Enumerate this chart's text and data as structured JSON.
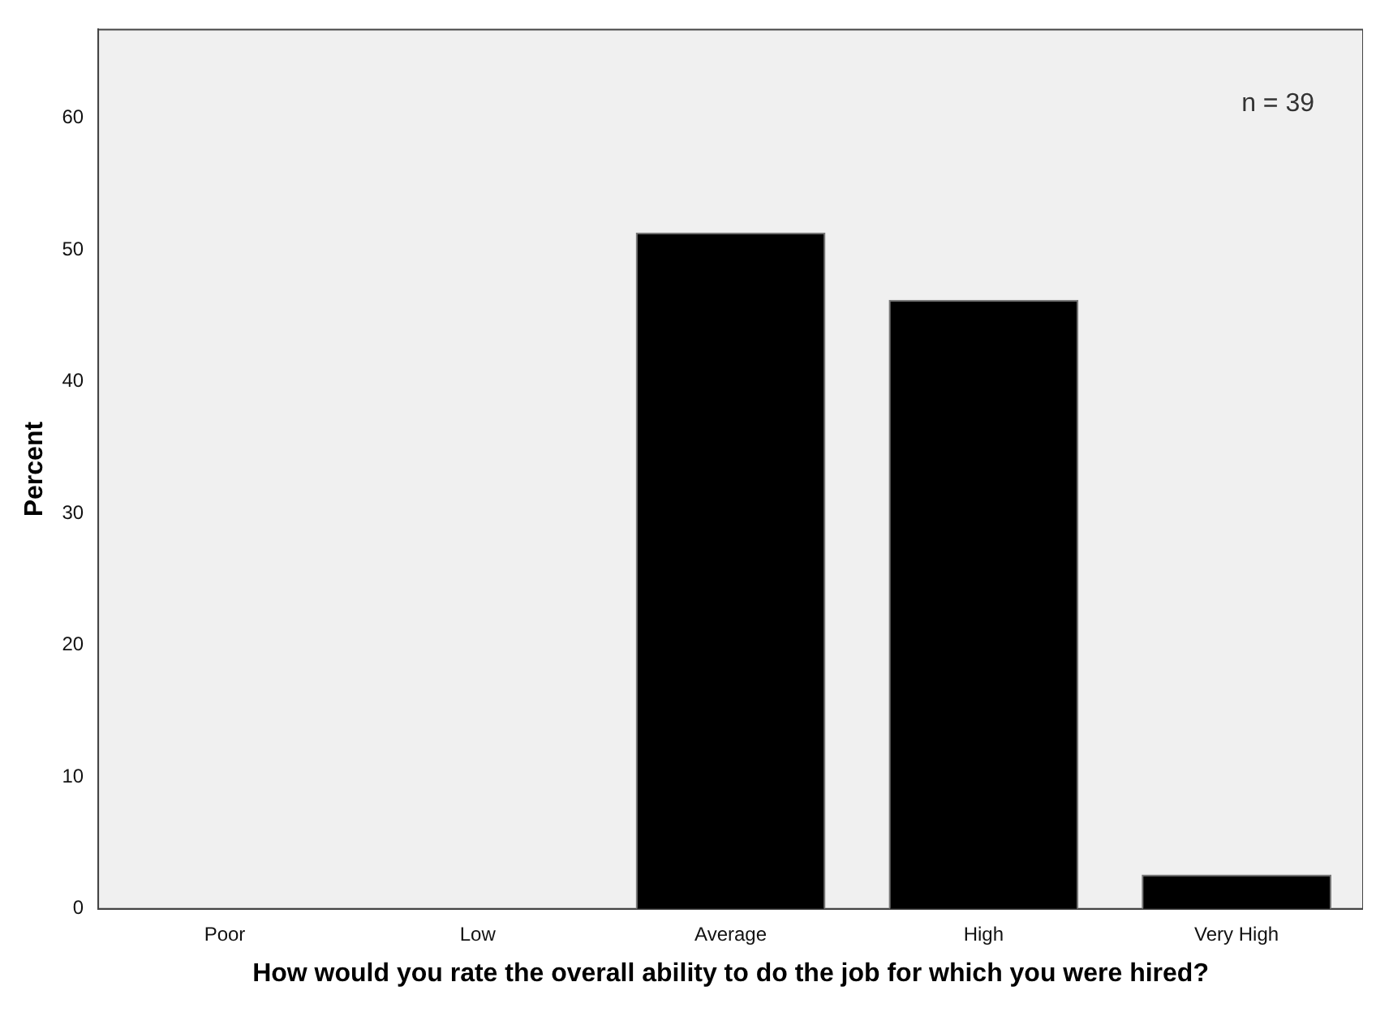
{
  "chart_data": {
    "type": "bar",
    "xlabel": "How would you rate the overall ability to do the job for which you were hired?",
    "ylabel": "Percent",
    "categories": [
      "Poor",
      "Low",
      "Average",
      "High",
      "Very High"
    ],
    "values": [
      0,
      0,
      51.3,
      46.2,
      2.6
    ],
    "color": "#000000",
    "ylim": [
      0,
      66.7
    ],
    "yticks": [
      0,
      10,
      20,
      30,
      40,
      50,
      60
    ],
    "grid": false,
    "legend": false,
    "annotations": [
      "n = 39"
    ]
  }
}
